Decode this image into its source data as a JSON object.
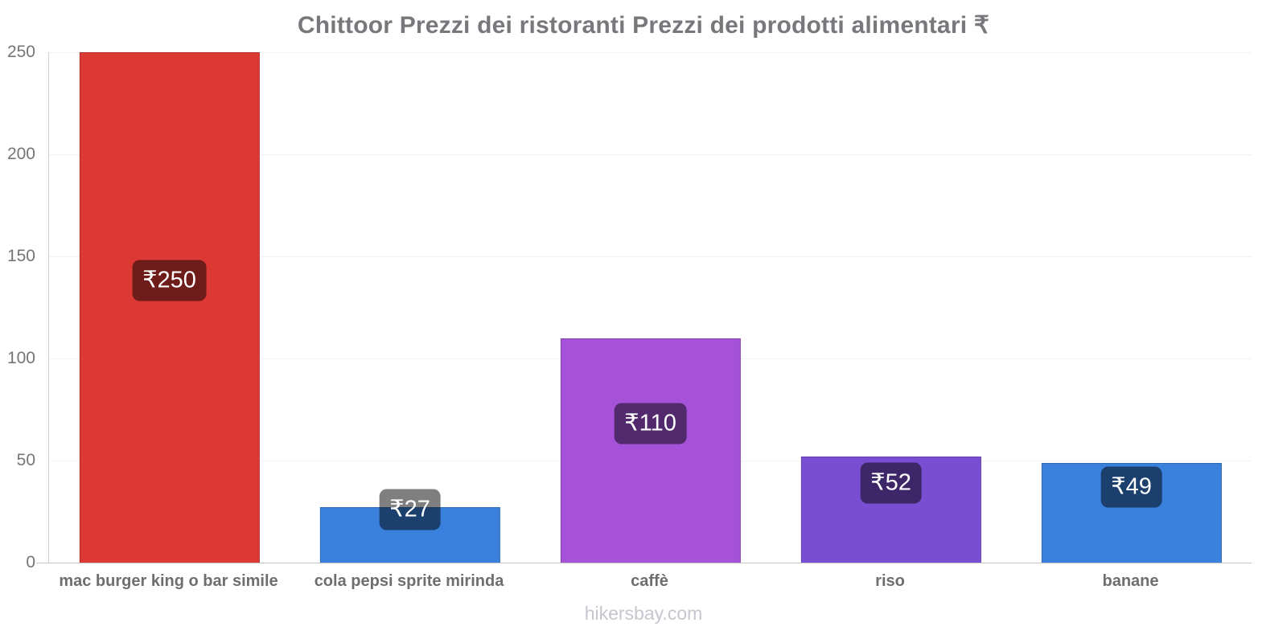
{
  "title": "Chittoor Prezzi dei ristoranti Prezzi dei prodotti alimentari ₹",
  "watermark": "hikersbay.com",
  "chart_data": {
    "type": "bar",
    "title": "Chittoor Prezzi dei ristoranti Prezzi dei prodotti alimentari ₹",
    "categories": [
      "mac burger king o bar simile",
      "cola pepsi sprite mirinda",
      "caffè",
      "riso",
      "banane"
    ],
    "values": [
      250,
      27,
      110,
      52,
      49
    ],
    "value_labels": [
      "₹250",
      "₹27",
      "₹110",
      "₹52",
      "₹49"
    ],
    "bar_colors": [
      "#dc3834",
      "#3981dc",
      "#a552d8",
      "#7a4ed2",
      "#3981dc"
    ],
    "value_badge_bg": "rgba(0,0,0,0.5)",
    "currency_symbol": "₹",
    "ylim": [
      0,
      250
    ],
    "yticks": [
      0,
      50,
      100,
      150,
      200,
      250
    ],
    "grid": "faint horizontal gridlines at each 50",
    "legend": "none",
    "badge_center_y_axis_units": [
      138,
      26,
      68,
      39,
      37
    ]
  },
  "style": {
    "title_color": "#77787b",
    "y_tick_color": "#757575",
    "x_tick_color": "#6e6e6e",
    "watermark_color": "#c6c6ce",
    "axis_line_color": "#c6c6c9",
    "grid_color": "#f3f3f4"
  }
}
